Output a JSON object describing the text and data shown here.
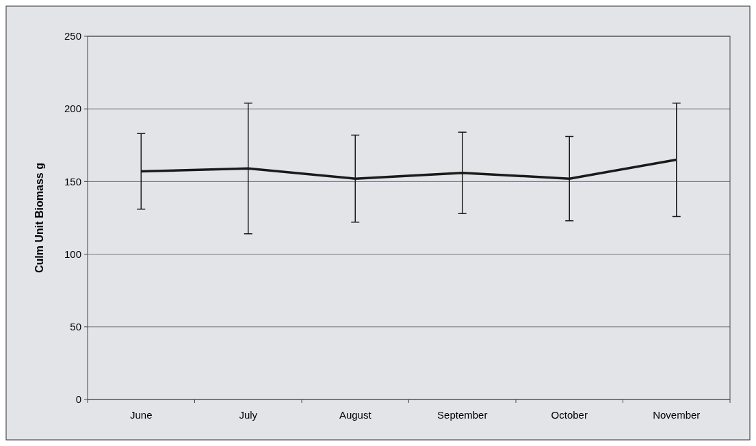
{
  "chart_data": {
    "type": "line",
    "ylabel": "Culm Unit Biomass g",
    "categories": [
      "June",
      "July",
      "August",
      "September",
      "October",
      "November"
    ],
    "series": [
      {
        "color": "#1a1a1a",
        "values": [
          157,
          159,
          152,
          156,
          152,
          165
        ],
        "errors": [
          26,
          45,
          30,
          28,
          29,
          39
        ]
      }
    ],
    "ylim": [
      0,
      250
    ],
    "yticks": [
      0,
      50,
      100,
      150,
      200,
      250
    ],
    "grid": "y",
    "marker": "none",
    "line_style": "solid"
  }
}
